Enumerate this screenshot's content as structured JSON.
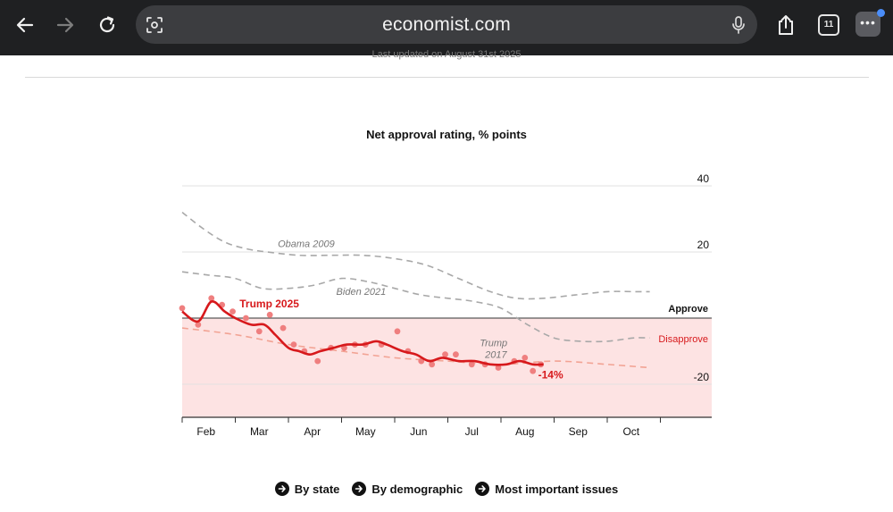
{
  "browser": {
    "url": "economist.com",
    "tab_count": "11",
    "more_label": "•••"
  },
  "page": {
    "updated_text": "Last updated on August 31st 2025"
  },
  "links": [
    {
      "label": "By state"
    },
    {
      "label": "By demographic"
    },
    {
      "label": "Most important issues"
    }
  ],
  "chart_data": {
    "type": "line",
    "title": "Net approval rating, % points",
    "xlabel": "",
    "ylabel": "",
    "ylim": [
      -30,
      40
    ],
    "yticks": [
      40,
      20,
      -20
    ],
    "x_ticks": [
      "Feb",
      "Mar",
      "Apr",
      "May",
      "Jun",
      "Jul",
      "Aug",
      "Sep",
      "Oct"
    ],
    "zone_labels": {
      "approve": "Approve",
      "disapprove": "Disapprove"
    },
    "end_label": "-14%",
    "series": [
      {
        "name": "Obama 2009",
        "style": "dashed",
        "color": "#a8a8a8",
        "x": [
          0.0,
          0.4,
          0.8,
          1.2,
          1.6,
          2.2,
          2.8,
          3.4,
          4.0,
          4.6,
          5.2,
          5.8,
          6.3,
          6.8,
          7.4,
          8.0,
          8.5,
          8.8
        ],
        "y": [
          32,
          27,
          23,
          21,
          20,
          19,
          19,
          19,
          18,
          16,
          12,
          8,
          6,
          6,
          7,
          8,
          8,
          8
        ]
      },
      {
        "name": "Biden 2021",
        "style": "dashed",
        "color": "#a8a8a8",
        "x": [
          0.0,
          0.5,
          1.0,
          1.5,
          2.0,
          2.5,
          3.0,
          3.5,
          4.0,
          4.5,
          5.0,
          5.5,
          6.0,
          6.5,
          7.0,
          7.5,
          8.0,
          8.5,
          8.8
        ],
        "y": [
          14,
          13,
          12,
          9,
          9,
          10,
          12,
          11,
          9,
          7,
          6,
          5,
          3,
          -2,
          -6,
          -7,
          -7,
          -6,
          -6
        ]
      },
      {
        "name": "Trump 2017",
        "style": "dashed",
        "color": "#f2a394",
        "x": [
          0.0,
          1.0,
          2.0,
          3.0,
          4.0,
          5.0,
          6.0,
          7.0,
          8.0,
          8.8
        ],
        "y": [
          -3,
          -5,
          -8,
          -10,
          -12,
          -13,
          -14,
          -13,
          -14,
          -15
        ]
      },
      {
        "name": "Trump 2025",
        "style": "solid",
        "color": "#d7191c",
        "x": [
          0.0,
          0.3,
          0.55,
          0.8,
          1.0,
          1.3,
          1.55,
          1.75,
          2.0,
          2.2,
          2.4,
          2.6,
          2.85,
          3.1,
          3.4,
          3.65,
          3.85,
          4.15,
          4.4,
          4.65,
          4.9,
          5.2,
          5.5,
          5.8,
          6.1,
          6.35,
          6.6,
          6.8
        ],
        "y": [
          2,
          -1,
          5,
          2,
          0,
          -2,
          -2,
          -5,
          -9,
          -10,
          -11,
          -10,
          -9,
          -8,
          -8,
          -7,
          -8,
          -10,
          -11,
          -13,
          -12,
          -13,
          -13,
          -14,
          -14,
          -13,
          -14,
          -14
        ]
      }
    ],
    "trump2025_points": {
      "x": [
        0.0,
        0.3,
        0.55,
        0.75,
        0.95,
        1.2,
        1.45,
        1.65,
        1.9,
        2.1,
        2.3,
        2.55,
        2.8,
        3.05,
        3.25,
        3.45,
        3.75,
        4.05,
        4.25,
        4.5,
        4.7,
        4.95,
        5.15,
        5.45,
        5.7,
        5.95,
        6.25,
        6.45,
        6.6,
        6.75
      ],
      "y": [
        3,
        -2,
        6,
        4,
        2,
        0,
        -4,
        1,
        -3,
        -8,
        -10,
        -13,
        -9,
        -9,
        -8,
        -8,
        -8,
        -4,
        -10,
        -13,
        -14,
        -11,
        -11,
        -14,
        -14,
        -15,
        -13,
        -12,
        -16,
        -14
      ]
    },
    "colors": {
      "trump2025": "#d7191c",
      "points": "#ef7f7f",
      "disapprove_zone": "#fde3e3",
      "disapprove_label": "#d7191c",
      "grid": "#e2e2e2",
      "zero_line": "#5a5a5a"
    }
  }
}
